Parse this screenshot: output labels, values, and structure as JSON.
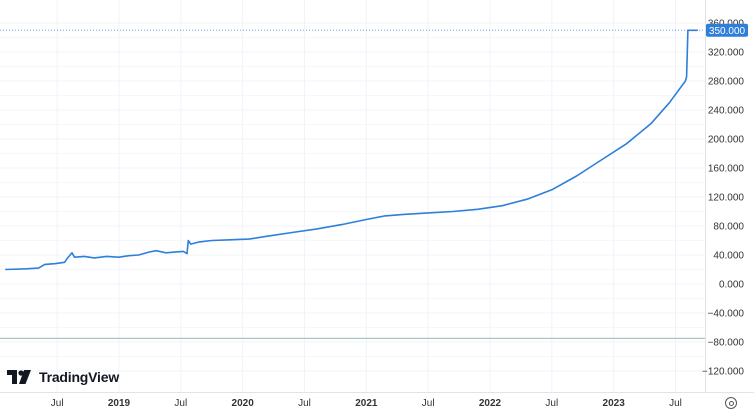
{
  "branding": {
    "name": "TradingView",
    "icon": "tradingview-logo"
  },
  "controls": {
    "settings_icon": "gear-icon"
  },
  "chart_data": {
    "type": "line",
    "title": "",
    "xlabel": "",
    "ylabel": "",
    "y_axis_position": "right",
    "ylim": [
      -130,
      362
    ],
    "y_ticks": [
      360,
      320,
      280,
      240,
      200,
      160,
      120,
      80,
      40,
      0,
      -40,
      -80,
      -120
    ],
    "y_tick_labels": [
      "360.000",
      "320.000",
      "280.000",
      "240.000",
      "200.000",
      "160.000",
      "120.000",
      "80.000",
      "40.000",
      "0.000",
      "−40.000",
      "−80.000",
      "−120.000"
    ],
    "x_ticks": [
      {
        "label": "Jul",
        "bold": false,
        "t": 2018.5
      },
      {
        "label": "2019",
        "bold": true,
        "t": 2019.0
      },
      {
        "label": "Jul",
        "bold": false,
        "t": 2019.5
      },
      {
        "label": "2020",
        "bold": true,
        "t": 2020.0
      },
      {
        "label": "Jul",
        "bold": false,
        "t": 2020.5
      },
      {
        "label": "2021",
        "bold": true,
        "t": 2021.0
      },
      {
        "label": "Jul",
        "bold": false,
        "t": 2021.5
      },
      {
        "label": "2022",
        "bold": true,
        "t": 2022.0
      },
      {
        "label": "Jul",
        "bold": false,
        "t": 2022.5
      },
      {
        "label": "2023",
        "bold": true,
        "t": 2023.0
      },
      {
        "label": "Jul",
        "bold": false,
        "t": 2023.5
      }
    ],
    "xlim": [
      2018.08,
      2023.85
    ],
    "grid": true,
    "last_value": 350,
    "last_value_label": "350.000",
    "line_color": "#2e7fd9",
    "reference_line": {
      "value": -75,
      "color": "#a8c8c0"
    },
    "series": [
      {
        "x": [
          2018.08,
          2018.25,
          2018.35,
          2018.4,
          2018.48,
          2018.56,
          2018.58,
          2018.62,
          2018.64,
          2018.72,
          2018.8,
          2018.9,
          2019.0,
          2019.08,
          2019.16,
          2019.24,
          2019.3,
          2019.38,
          2019.45,
          2019.52,
          2019.55,
          2019.56,
          2019.58,
          2019.65,
          2019.75,
          2019.9,
          2020.05,
          2020.2,
          2020.4,
          2020.6,
          2020.8,
          2021.0,
          2021.15,
          2021.3,
          2021.5,
          2021.7,
          2021.9,
          2022.1,
          2022.3,
          2022.5,
          2022.7,
          2022.9,
          2023.1,
          2023.3,
          2023.45,
          2023.58,
          2023.59,
          2023.6,
          2023.68
        ],
        "y": [
          20,
          21,
          22,
          27,
          28,
          30,
          35,
          43,
          37,
          38,
          36,
          38,
          37,
          39,
          40,
          44,
          46,
          43,
          44,
          45,
          42,
          60,
          55,
          58,
          60,
          61,
          62,
          66,
          71,
          76,
          82,
          89,
          94,
          96,
          98,
          100,
          103,
          108,
          117,
          130,
          149,
          171,
          193,
          221,
          250,
          280,
          286,
          350,
          350
        ]
      }
    ]
  }
}
